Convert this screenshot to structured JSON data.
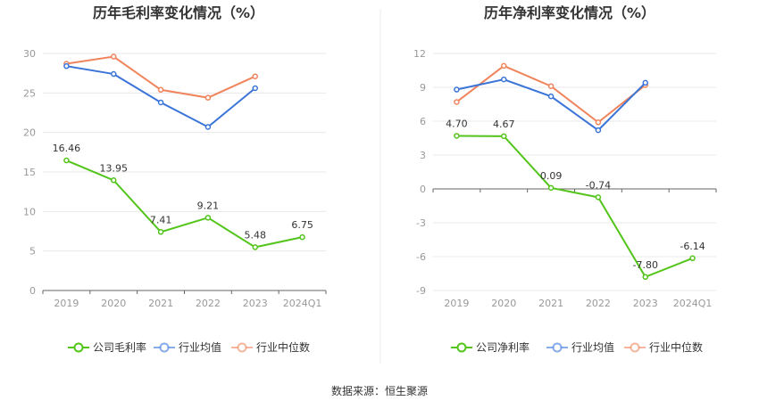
{
  "source_text": "数据来源：恒生聚源",
  "chart_data": [
    {
      "type": "line",
      "title": "历年毛利率变化情况（%）",
      "categories": [
        "2019",
        "2020",
        "2021",
        "2022",
        "2023",
        "2024Q1"
      ],
      "ylim": [
        0,
        30
      ],
      "yticks": [
        0,
        5,
        10,
        15,
        20,
        25,
        30
      ],
      "grid": true,
      "legend": "bottom",
      "series": [
        {
          "name": "公司毛利率",
          "color": "#52c41a",
          "values": [
            16.46,
            13.95,
            7.41,
            9.21,
            5.48,
            6.75
          ],
          "labels": [
            "16.46",
            "13.95",
            "7.41",
            "9.21",
            "5.48",
            "6.75"
          ]
        },
        {
          "name": "行业均值",
          "color": "#3b74d9",
          "values": [
            28.4,
            27.4,
            23.8,
            20.7,
            25.6,
            null
          ],
          "labels": null
        },
        {
          "name": "行业中位数",
          "color": "#f0845c",
          "values": [
            28.7,
            29.6,
            25.4,
            24.4,
            27.1,
            null
          ],
          "labels": null
        }
      ]
    },
    {
      "type": "line",
      "title": "历年净利率变化情况（%）",
      "categories": [
        "2019",
        "2020",
        "2021",
        "2022",
        "2023",
        "2024Q1"
      ],
      "ylim": [
        -9,
        12
      ],
      "yticks": [
        -9,
        -6,
        -3,
        0,
        3,
        6,
        9,
        12
      ],
      "grid": true,
      "legend": "bottom",
      "series": [
        {
          "name": "公司净利率",
          "color": "#52c41a",
          "values": [
            4.7,
            4.67,
            0.09,
            -0.74,
            -7.8,
            -6.14
          ],
          "labels": [
            "4.70",
            "4.67",
            "0.09",
            "-0.74",
            "-7.80",
            "-6.14"
          ]
        },
        {
          "name": "行业均值",
          "color": "#3b74d9",
          "values": [
            8.8,
            9.7,
            8.2,
            5.2,
            9.4,
            null
          ],
          "labels": null
        },
        {
          "name": "行业中位数",
          "color": "#f0845c",
          "values": [
            7.7,
            10.9,
            9.1,
            5.9,
            9.2,
            null
          ],
          "labels": null
        }
      ]
    }
  ]
}
